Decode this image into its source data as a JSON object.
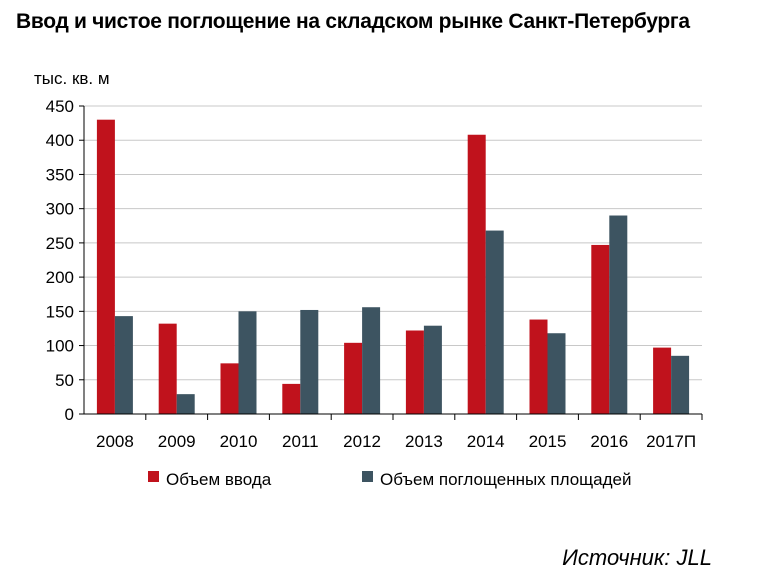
{
  "chart_data": {
    "type": "bar",
    "title": "Ввод и чистое поглощение на складском рынке Санкт-Петербурга",
    "ylabel": "тыс. кв. м",
    "xlabel": "",
    "categories": [
      "2008",
      "2009",
      "2010",
      "2011",
      "2012",
      "2013",
      "2014",
      "2015",
      "2016",
      "2017П"
    ],
    "series": [
      {
        "name": "Объем ввода",
        "color": "#c0121c",
        "values": [
          430,
          132,
          74,
          44,
          104,
          122,
          408,
          138,
          247,
          97
        ]
      },
      {
        "name": "Объем поглощенных площадей",
        "color": "#3d5461",
        "values": [
          143,
          29,
          150,
          152,
          156,
          129,
          268,
          118,
          290,
          85
        ]
      }
    ],
    "ylim": [
      0,
      450
    ],
    "yticks": [
      0,
      50,
      100,
      150,
      200,
      250,
      300,
      350,
      400,
      450
    ],
    "grid": true,
    "legend": "bottom"
  },
  "source": "Источник: JLL"
}
